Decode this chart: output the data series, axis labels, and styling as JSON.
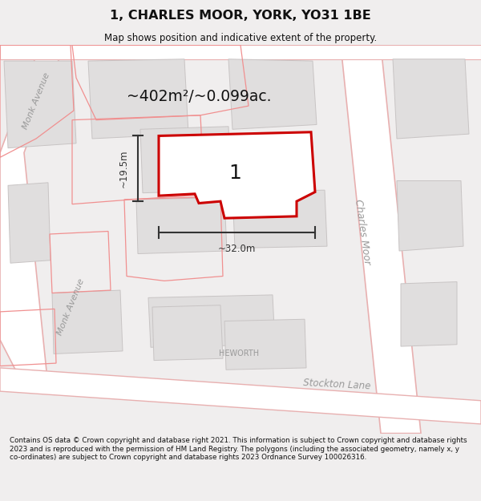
{
  "title": "1, CHARLES MOOR, YORK, YO31 1BE",
  "subtitle": "Map shows position and indicative extent of the property.",
  "area_text": "~402m²/~0.099ac.",
  "width_label": "~32.0m",
  "height_label": "~19.5m",
  "property_number": "1",
  "footer": "Contains OS data © Crown copyright and database right 2021. This information is subject to Crown copyright and database rights 2023 and is reproduced with the permission of HM Land Registry. The polygons (including the associated geometry, namely x, y co-ordinates) are subject to Crown copyright and database rights 2023 Ordnance Survey 100026316.",
  "bg_color": "#f0eeee",
  "map_bg": "#f0eeee",
  "road_color": "#ffffff",
  "road_outline_color": "#e8b0b0",
  "building_color": "#e0dede",
  "building_outline": "#c8c4c4",
  "property_fill": "#ffffff",
  "property_outline": "#cc0000",
  "dim_color": "#333333",
  "street_label_color": "#999999",
  "title_color": "#111111",
  "footer_color": "#111111"
}
